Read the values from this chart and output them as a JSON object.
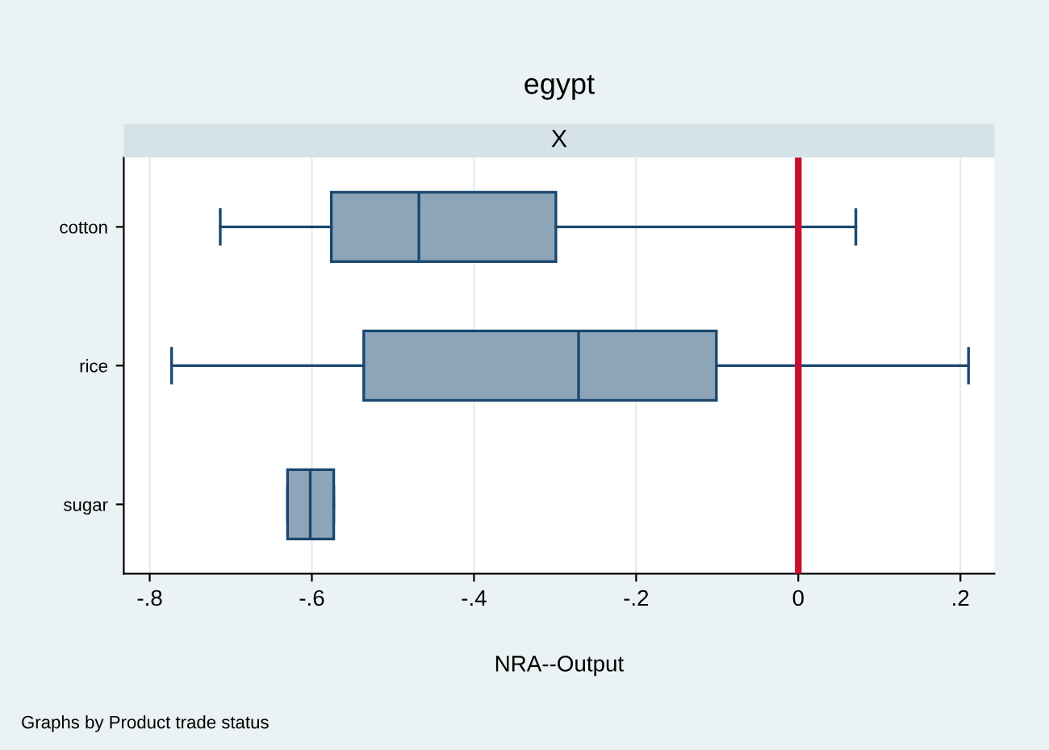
{
  "chart_data": {
    "type": "box",
    "orientation": "horizontal",
    "title": "egypt",
    "subtitle": "X",
    "xlabel": "NRA--Output",
    "categories": [
      "cotton",
      "rice",
      "sugar"
    ],
    "boxes": [
      {
        "low": -0.713,
        "q1": -0.576,
        "median": -0.468,
        "q3": -0.299,
        "high": 0.071
      },
      {
        "low": -0.773,
        "q1": -0.536,
        "median": -0.271,
        "q3": -0.101,
        "high": 0.21
      },
      {
        "low": -0.63,
        "q1": -0.63,
        "median": -0.602,
        "q3": -0.573,
        "high": -0.573
      }
    ],
    "color": "#8ea4b8",
    "xlim": [
      -0.832,
      0.242
    ],
    "xticks": [
      {
        "value": -0.8,
        "label": "-.8"
      },
      {
        "value": -0.6,
        "label": "-.6"
      },
      {
        "value": -0.4,
        "label": "-.4"
      },
      {
        "value": -0.2,
        "label": "-.2"
      },
      0,
      {
        "value": 0.2,
        "label": ".2"
      }
    ],
    "grid": "x",
    "ref_lines": [
      {
        "axis": "x",
        "value": 0,
        "color": "#c8102e"
      }
    ],
    "annotations": [
      "Graphs by Product trade status"
    ]
  }
}
